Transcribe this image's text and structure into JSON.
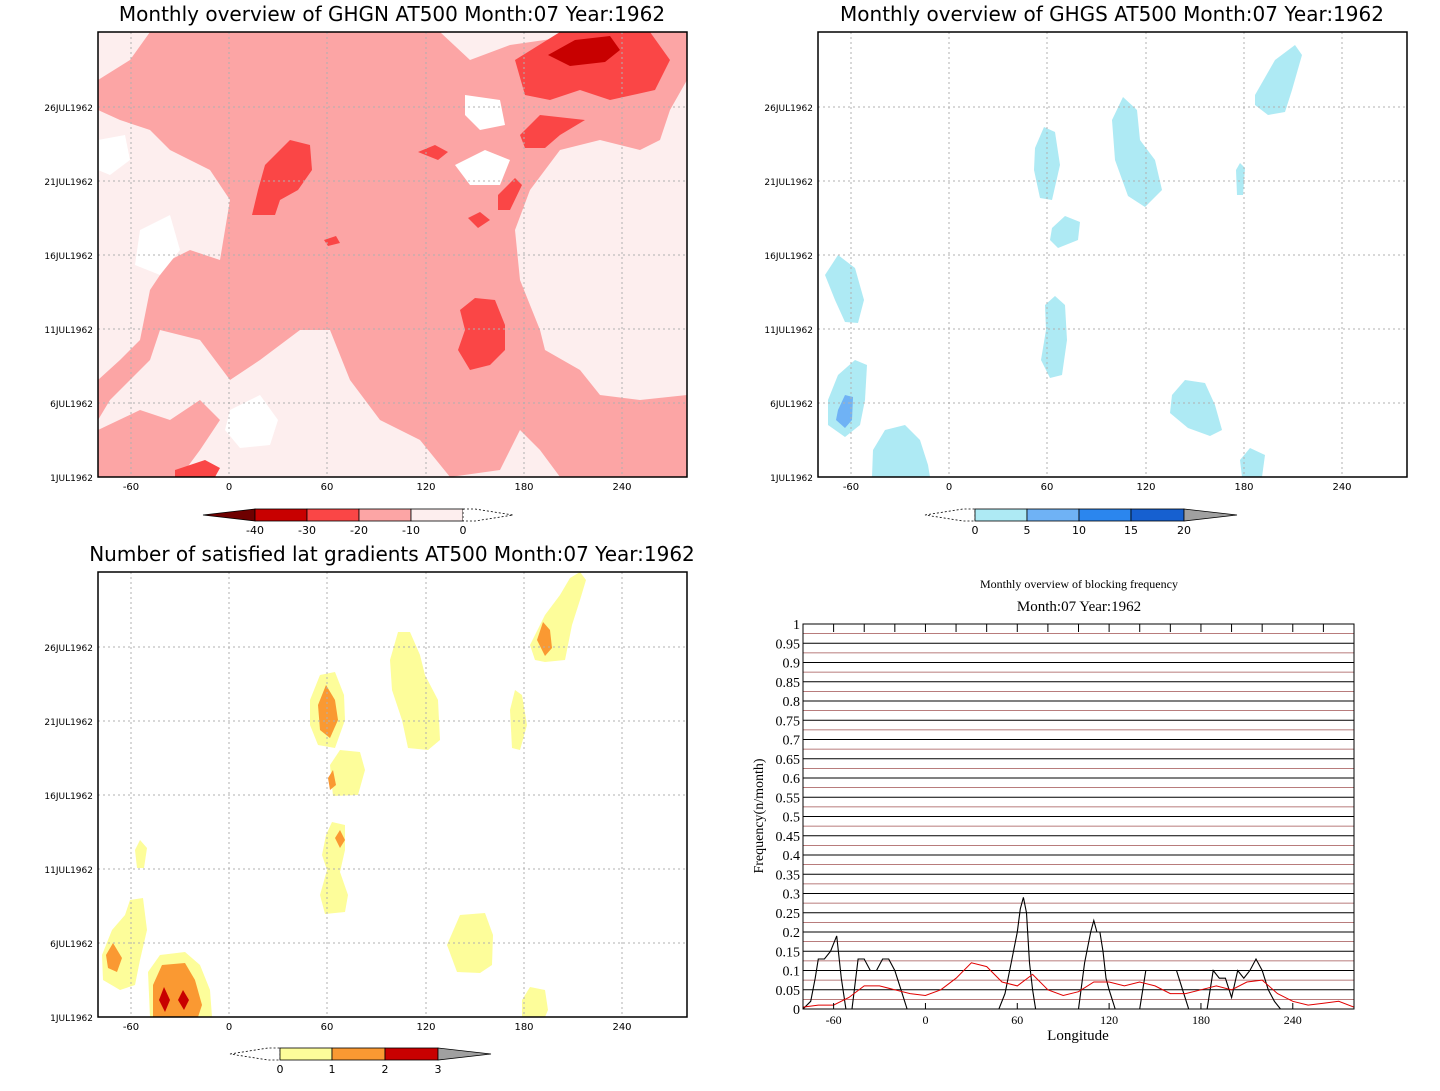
{
  "chart_data": [
    {
      "type": "heatmap",
      "title": "Monthly overview of GHGN AT500 Month:07 Year:1962",
      "x_ticks": [
        "-60",
        "0",
        "60",
        "120",
        "180",
        "240"
      ],
      "y_ticks": [
        "1JUL1962",
        "6JUL1962",
        "11JUL1962",
        "16JUL1962",
        "21JUL1962",
        "26JUL1962"
      ],
      "colorbar_ticks": [
        "-40",
        "-30",
        "-20",
        "-10",
        "0"
      ],
      "colorbar_colors": [
        "#6e0000",
        "#c80000",
        "#fa4646",
        "#fca5a5",
        "#fdeeee"
      ],
      "grid": true
    },
    {
      "type": "heatmap",
      "title": "Monthly overview of GHGS AT500 Month:07 Year:1962",
      "x_ticks": [
        "-60",
        "0",
        "60",
        "120",
        "180",
        "240"
      ],
      "y_ticks": [
        "1JUL1962",
        "6JUL1962",
        "11JUL1962",
        "16JUL1962",
        "21JUL1962",
        "26JUL1962"
      ],
      "colorbar_ticks": [
        "0",
        "5",
        "10",
        "15",
        "20"
      ],
      "colorbar_colors": [
        "#aeeaf4",
        "#6fb2f5",
        "#2b86ee",
        "#1660d0",
        "#a0a0a0"
      ],
      "grid": true
    },
    {
      "type": "heatmap",
      "title": "Number of satisfied lat gradients AT500 Month:07 Year:1962",
      "x_ticks": [
        "-60",
        "0",
        "60",
        "120",
        "180",
        "240"
      ],
      "y_ticks": [
        "1JUL1962",
        "6JUL1962",
        "11JUL1962",
        "16JUL1962",
        "21JUL1962",
        "26JUL1962"
      ],
      "colorbar_ticks": [
        "0",
        "1",
        "2",
        "3"
      ],
      "colorbar_colors": [
        "#fdfd9a",
        "#fa9932",
        "#c80000",
        "#a0a0a0"
      ],
      "grid": true
    },
    {
      "type": "line",
      "title": "Monthly overview of blocking frequency",
      "subtitle": "Month:07 Year:1962",
      "xlabel": "Longitude",
      "ylabel": "Frequency(n/month)",
      "x_ticks": [
        "-60",
        "0",
        "60",
        "120",
        "180",
        "240"
      ],
      "y_ticks": [
        "0",
        "0.05",
        "0.1",
        "0.15",
        "0.2",
        "0.25",
        "0.3",
        "0.35",
        "0.4",
        "0.45",
        "0.5",
        "0.55",
        "0.6",
        "0.65",
        "0.7",
        "0.75",
        "0.8",
        "0.85",
        "0.9",
        "0.95",
        "1"
      ],
      "xlim": [
        -80,
        280
      ],
      "ylim": [
        0,
        1
      ],
      "series": [
        {
          "color": "#000000",
          "x": [
            -80,
            -75,
            -72,
            -70,
            -66,
            -62,
            -58,
            -55,
            -52,
            -48,
            -44,
            -40,
            -36,
            -32,
            -28,
            -24,
            -20,
            -16,
            -12,
            -8,
            -4,
            0,
            4,
            8,
            12,
            16,
            20,
            24,
            28,
            32,
            36,
            40,
            44,
            48,
            52,
            56,
            60,
            62,
            64,
            66,
            68,
            70,
            72,
            76,
            80,
            84,
            88,
            92,
            96,
            100,
            104,
            108,
            110,
            112,
            114,
            116,
            118,
            120,
            124,
            128,
            132,
            136,
            140,
            144,
            148,
            152,
            156,
            160,
            164,
            168,
            172,
            176,
            180,
            184,
            188,
            192,
            196,
            200,
            204,
            208,
            212,
            216,
            220,
            224,
            228,
            232,
            236,
            240,
            250,
            260,
            270,
            280
          ],
          "y": [
            0,
            0.02,
            0.08,
            0.13,
            0.13,
            0.15,
            0.19,
            0.08,
            0,
            0,
            0.13,
            0.13,
            0.1,
            0.1,
            0.13,
            0.13,
            0.1,
            0.05,
            0,
            0,
            0,
            0,
            0,
            0,
            0,
            0,
            0,
            0,
            0,
            0,
            0,
            0,
            0,
            0,
            0.04,
            0.12,
            0.2,
            0.26,
            0.29,
            0.25,
            0.12,
            0.05,
            0,
            0,
            0,
            0,
            0,
            0,
            0,
            0,
            0.12,
            0.2,
            0.23,
            0.2,
            0.2,
            0.15,
            0.08,
            0.05,
            0,
            0,
            0,
            0,
            0,
            0.1,
            0.1,
            0.1,
            0.1,
            0.1,
            0.1,
            0.05,
            0,
            0,
            0,
            0,
            0.1,
            0.08,
            0.08,
            0.03,
            0.1,
            0.08,
            0.1,
            0.13,
            0.1,
            0.05,
            0.02,
            0,
            0,
            0,
            0,
            0,
            0,
            0
          ]
        },
        {
          "color": "#e00000",
          "x": [
            -80,
            -70,
            -60,
            -50,
            -40,
            -30,
            -20,
            -10,
            0,
            10,
            20,
            30,
            40,
            50,
            60,
            70,
            80,
            90,
            100,
            110,
            120,
            130,
            140,
            150,
            160,
            170,
            180,
            190,
            200,
            210,
            220,
            230,
            240,
            250,
            260,
            270,
            280
          ],
          "y": [
            0.005,
            0.01,
            0.01,
            0.03,
            0.06,
            0.06,
            0.05,
            0.04,
            0.035,
            0.05,
            0.08,
            0.12,
            0.11,
            0.07,
            0.06,
            0.09,
            0.05,
            0.035,
            0.045,
            0.07,
            0.07,
            0.06,
            0.07,
            0.06,
            0.04,
            0.04,
            0.05,
            0.06,
            0.05,
            0.07,
            0.075,
            0.04,
            0.02,
            0.01,
            0.015,
            0.02,
            0.005
          ]
        }
      ],
      "grid": true
    }
  ]
}
